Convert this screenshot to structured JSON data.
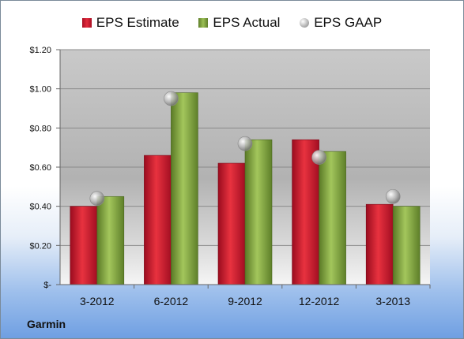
{
  "company": "Garmin",
  "colors": {
    "estimate": "#c8102e",
    "actual": "#7a9a3a",
    "gaap": "#a8a8a8"
  },
  "chart_data": {
    "type": "bar",
    "categories": [
      "3-2012",
      "6-2012",
      "9-2012",
      "12-2012",
      "3-2013"
    ],
    "series": [
      {
        "name": "EPS Estimate",
        "kind": "bar",
        "values": [
          0.4,
          0.66,
          0.62,
          0.74,
          0.41
        ]
      },
      {
        "name": "EPS Actual",
        "kind": "bar",
        "values": [
          0.45,
          0.98,
          0.74,
          0.68,
          0.4
        ]
      },
      {
        "name": "EPS GAAP",
        "kind": "marker",
        "values": [
          0.44,
          0.95,
          0.72,
          0.65,
          0.45
        ]
      }
    ],
    "ylim": [
      0,
      1.2
    ],
    "yticks": [
      0,
      0.2,
      0.4,
      0.6,
      0.8,
      1.0,
      1.2
    ],
    "ytick_labels": [
      "$-",
      "$0.20",
      "$0.40",
      "$0.60",
      "$0.80",
      "$1.00",
      "$1.20"
    ],
    "legend_position": "top-center",
    "grid": true
  }
}
